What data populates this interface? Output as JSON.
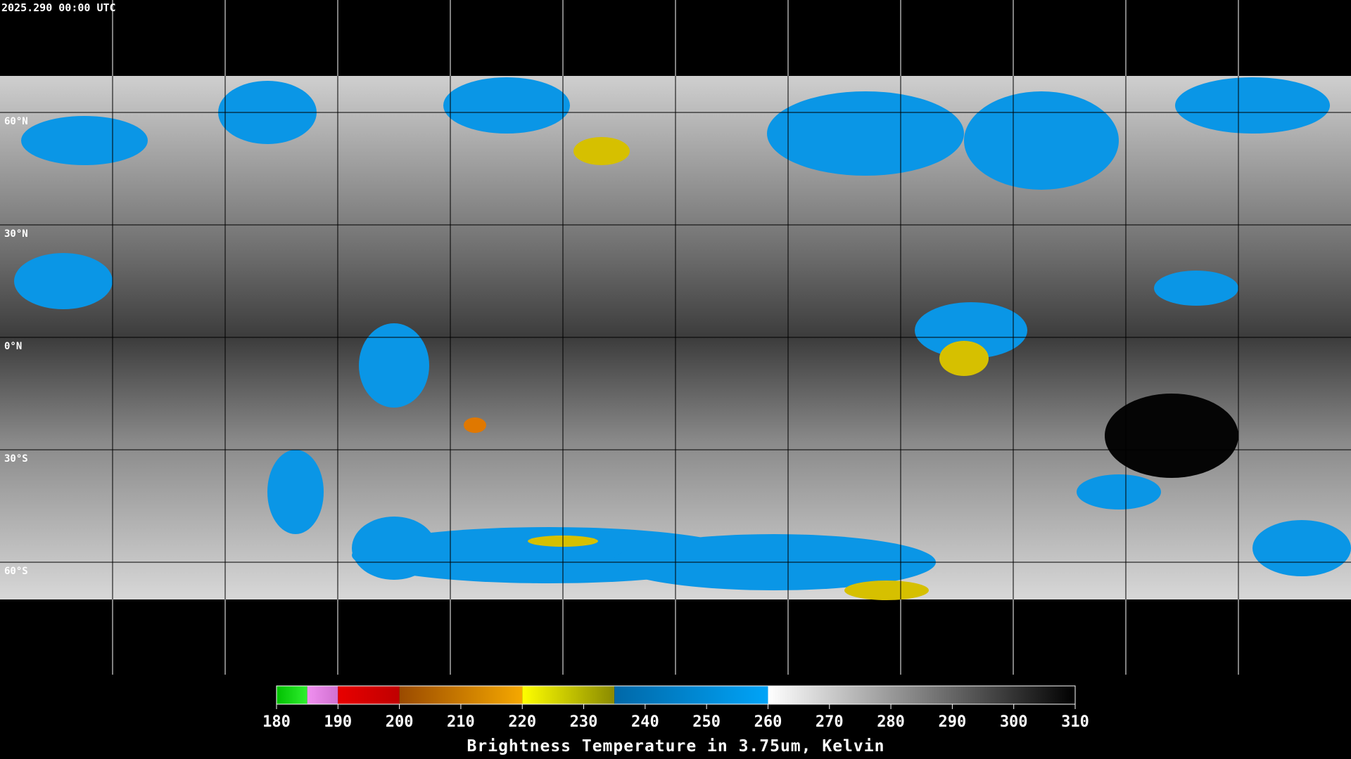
{
  "header": {
    "timestamp": "2025.290 00:00 UTC"
  },
  "map": {
    "latlim": [
      90,
      -90
    ],
    "lat_ticks": [
      {
        "value": 60,
        "label": "60°N"
      },
      {
        "value": 30,
        "label": "30°N"
      },
      {
        "value": 0,
        "label": "0°N"
      },
      {
        "value": -30,
        "label": "30°S"
      },
      {
        "value": -60,
        "label": "60°S"
      }
    ]
  },
  "colorbar": {
    "title": "Brightness Temperature in 3.75um, Kelvin",
    "lim": [
      180,
      310
    ],
    "ticks": [
      180,
      190,
      200,
      210,
      220,
      230,
      240,
      250,
      260,
      270,
      280,
      290,
      300,
      310
    ],
    "segments": [
      {
        "from": 180,
        "to": 185,
        "colors": [
          "#00c000",
          "#30f030"
        ]
      },
      {
        "from": 185,
        "to": 190,
        "colors": [
          "#f090f0",
          "#d070d0"
        ]
      },
      {
        "from": 190,
        "to": 200,
        "colors": [
          "#e80000",
          "#c00000"
        ]
      },
      {
        "from": 200,
        "to": 220,
        "colors": [
          "#9a4a00",
          "#f5a800"
        ]
      },
      {
        "from": 220,
        "to": 235,
        "colors": [
          "#ffff00",
          "#8a8a00"
        ]
      },
      {
        "from": 235,
        "to": 260,
        "colors": [
          "#0068a8",
          "#00a4f8"
        ]
      },
      {
        "from": 260,
        "to": 310,
        "colors": [
          "#ffffff",
          "#000000"
        ]
      }
    ]
  }
}
